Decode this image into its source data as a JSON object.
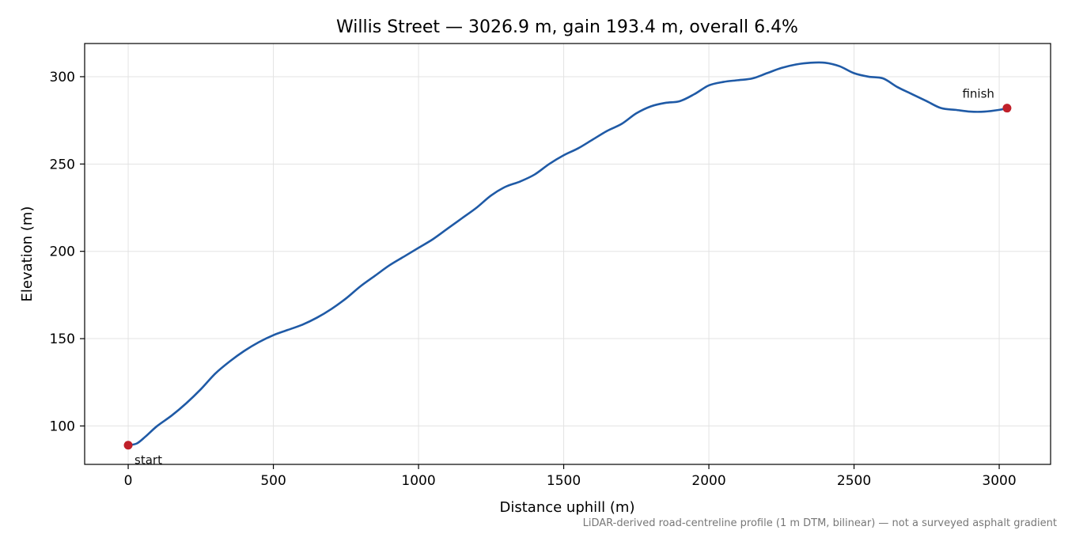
{
  "chart_data": {
    "type": "line",
    "title": "Willis Street — 3026.9 m, gain 193.4 m, overall 6.4%",
    "xlabel": "Distance uphill (m)",
    "ylabel": "Elevation (m)",
    "xlim": [
      -150,
      3177
    ],
    "ylim": [
      78,
      319
    ],
    "x_ticks": [
      0,
      500,
      1000,
      1500,
      2000,
      2500,
      3000
    ],
    "y_ticks": [
      100,
      150,
      200,
      250,
      300
    ],
    "grid": true,
    "legend": "none",
    "line_color": "#1f5aa6",
    "marker_color": "#c0202a",
    "series": [
      {
        "x": [
          0,
          30,
          60,
          100,
          150,
          200,
          250,
          300,
          350,
          400,
          450,
          500,
          550,
          600,
          650,
          700,
          750,
          800,
          850,
          900,
          950,
          1000,
          1050,
          1100,
          1150,
          1200,
          1250,
          1300,
          1350,
          1400,
          1450,
          1500,
          1550,
          1600,
          1650,
          1700,
          1750,
          1800,
          1850,
          1900,
          1950,
          2000,
          2050,
          2100,
          2150,
          2200,
          2250,
          2300,
          2350,
          2400,
          2450,
          2500,
          2550,
          2600,
          2650,
          2700,
          2750,
          2800,
          2850,
          2900,
          2950,
          3000,
          3026.9
        ],
        "y": [
          89,
          90,
          94,
          100,
          106,
          113,
          121,
          130,
          137,
          143,
          148,
          152,
          155,
          158,
          162,
          167,
          173,
          180,
          186,
          192,
          197,
          202,
          207,
          213,
          219,
          225,
          232,
          237,
          240,
          244,
          250,
          255,
          259,
          264,
          269,
          273,
          279,
          283,
          285,
          286,
          290,
          295,
          297,
          298,
          299,
          302,
          305,
          307,
          308,
          308,
          306,
          302,
          300,
          299,
          294,
          290,
          286,
          282,
          281,
          280,
          280,
          281,
          282
        ]
      }
    ],
    "annotations": [
      {
        "text": "start",
        "x": 0,
        "y": 89
      },
      {
        "text": "finish",
        "x": 3026.9,
        "y": 282
      }
    ],
    "footnote": "LiDAR-derived road-centreline profile (1 m DTM, bilinear) — not a surveyed asphalt gradient"
  }
}
